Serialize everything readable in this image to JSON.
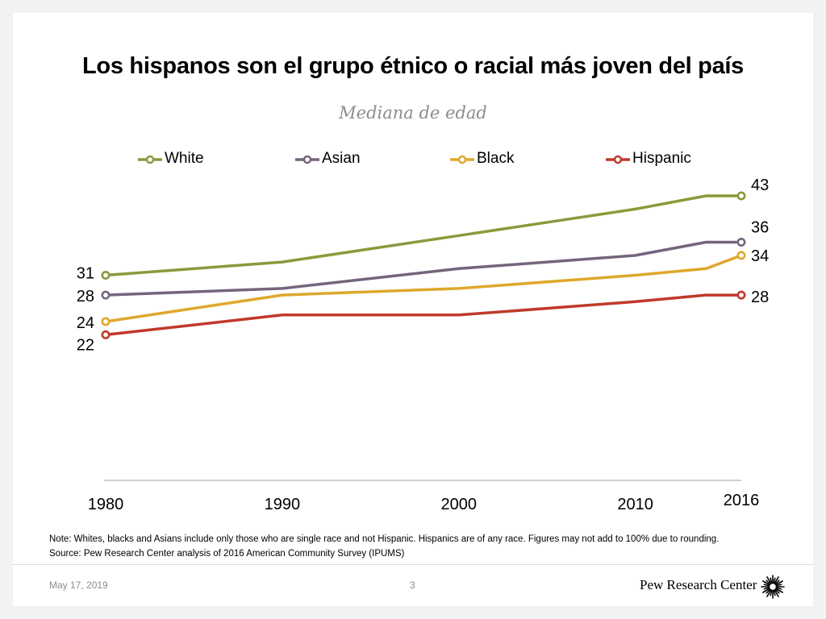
{
  "slide": {
    "title": "Los hispanos son el grupo étnico o racial más joven del país",
    "subtitle": "Mediana de edad",
    "note": "Note: Whites, blacks and Asians include only those who are single race and not Hispanic. Hispanics are of any race. Figures may not add to 100% due to rounding.",
    "source": "Source: Pew Research Center analysis of 2016 American Community Survey (IPUMS)",
    "date": "May 17, 2019",
    "page_number": "3",
    "logo_text": "Pew Research Center"
  },
  "chart_data": {
    "type": "line",
    "title": "Los hispanos son el grupo étnico o racial más joven del país",
    "subtitle": "Mediana de edad",
    "xlabel": "",
    "ylabel": "",
    "x": [
      1980,
      1990,
      2000,
      2010,
      2014,
      2016
    ],
    "x_ticks": [
      "1980",
      "1990",
      "2000",
      "2010",
      "2016"
    ],
    "ylim": [
      0,
      45
    ],
    "legend_position": "top",
    "series": [
      {
        "name": "White",
        "color": "#8a9a3c",
        "values": [
          31,
          33,
          37,
          41,
          43,
          43
        ],
        "start_label": "31",
        "end_label": "43"
      },
      {
        "name": "Asian",
        "color": "#74657d",
        "values": [
          28,
          29,
          32,
          34,
          36,
          36
        ],
        "start_label": "28",
        "end_label": "36"
      },
      {
        "name": "Black",
        "color": "#dfa82c",
        "values": [
          24,
          28,
          29,
          31,
          32,
          34
        ],
        "start_label": "24",
        "end_label": "34"
      },
      {
        "name": "Hispanic",
        "color": "#c0392b",
        "values": [
          22,
          25,
          25,
          27,
          28,
          28
        ],
        "start_label": "22",
        "end_label": "28"
      }
    ],
    "axis_color": "#bfbfbf"
  }
}
